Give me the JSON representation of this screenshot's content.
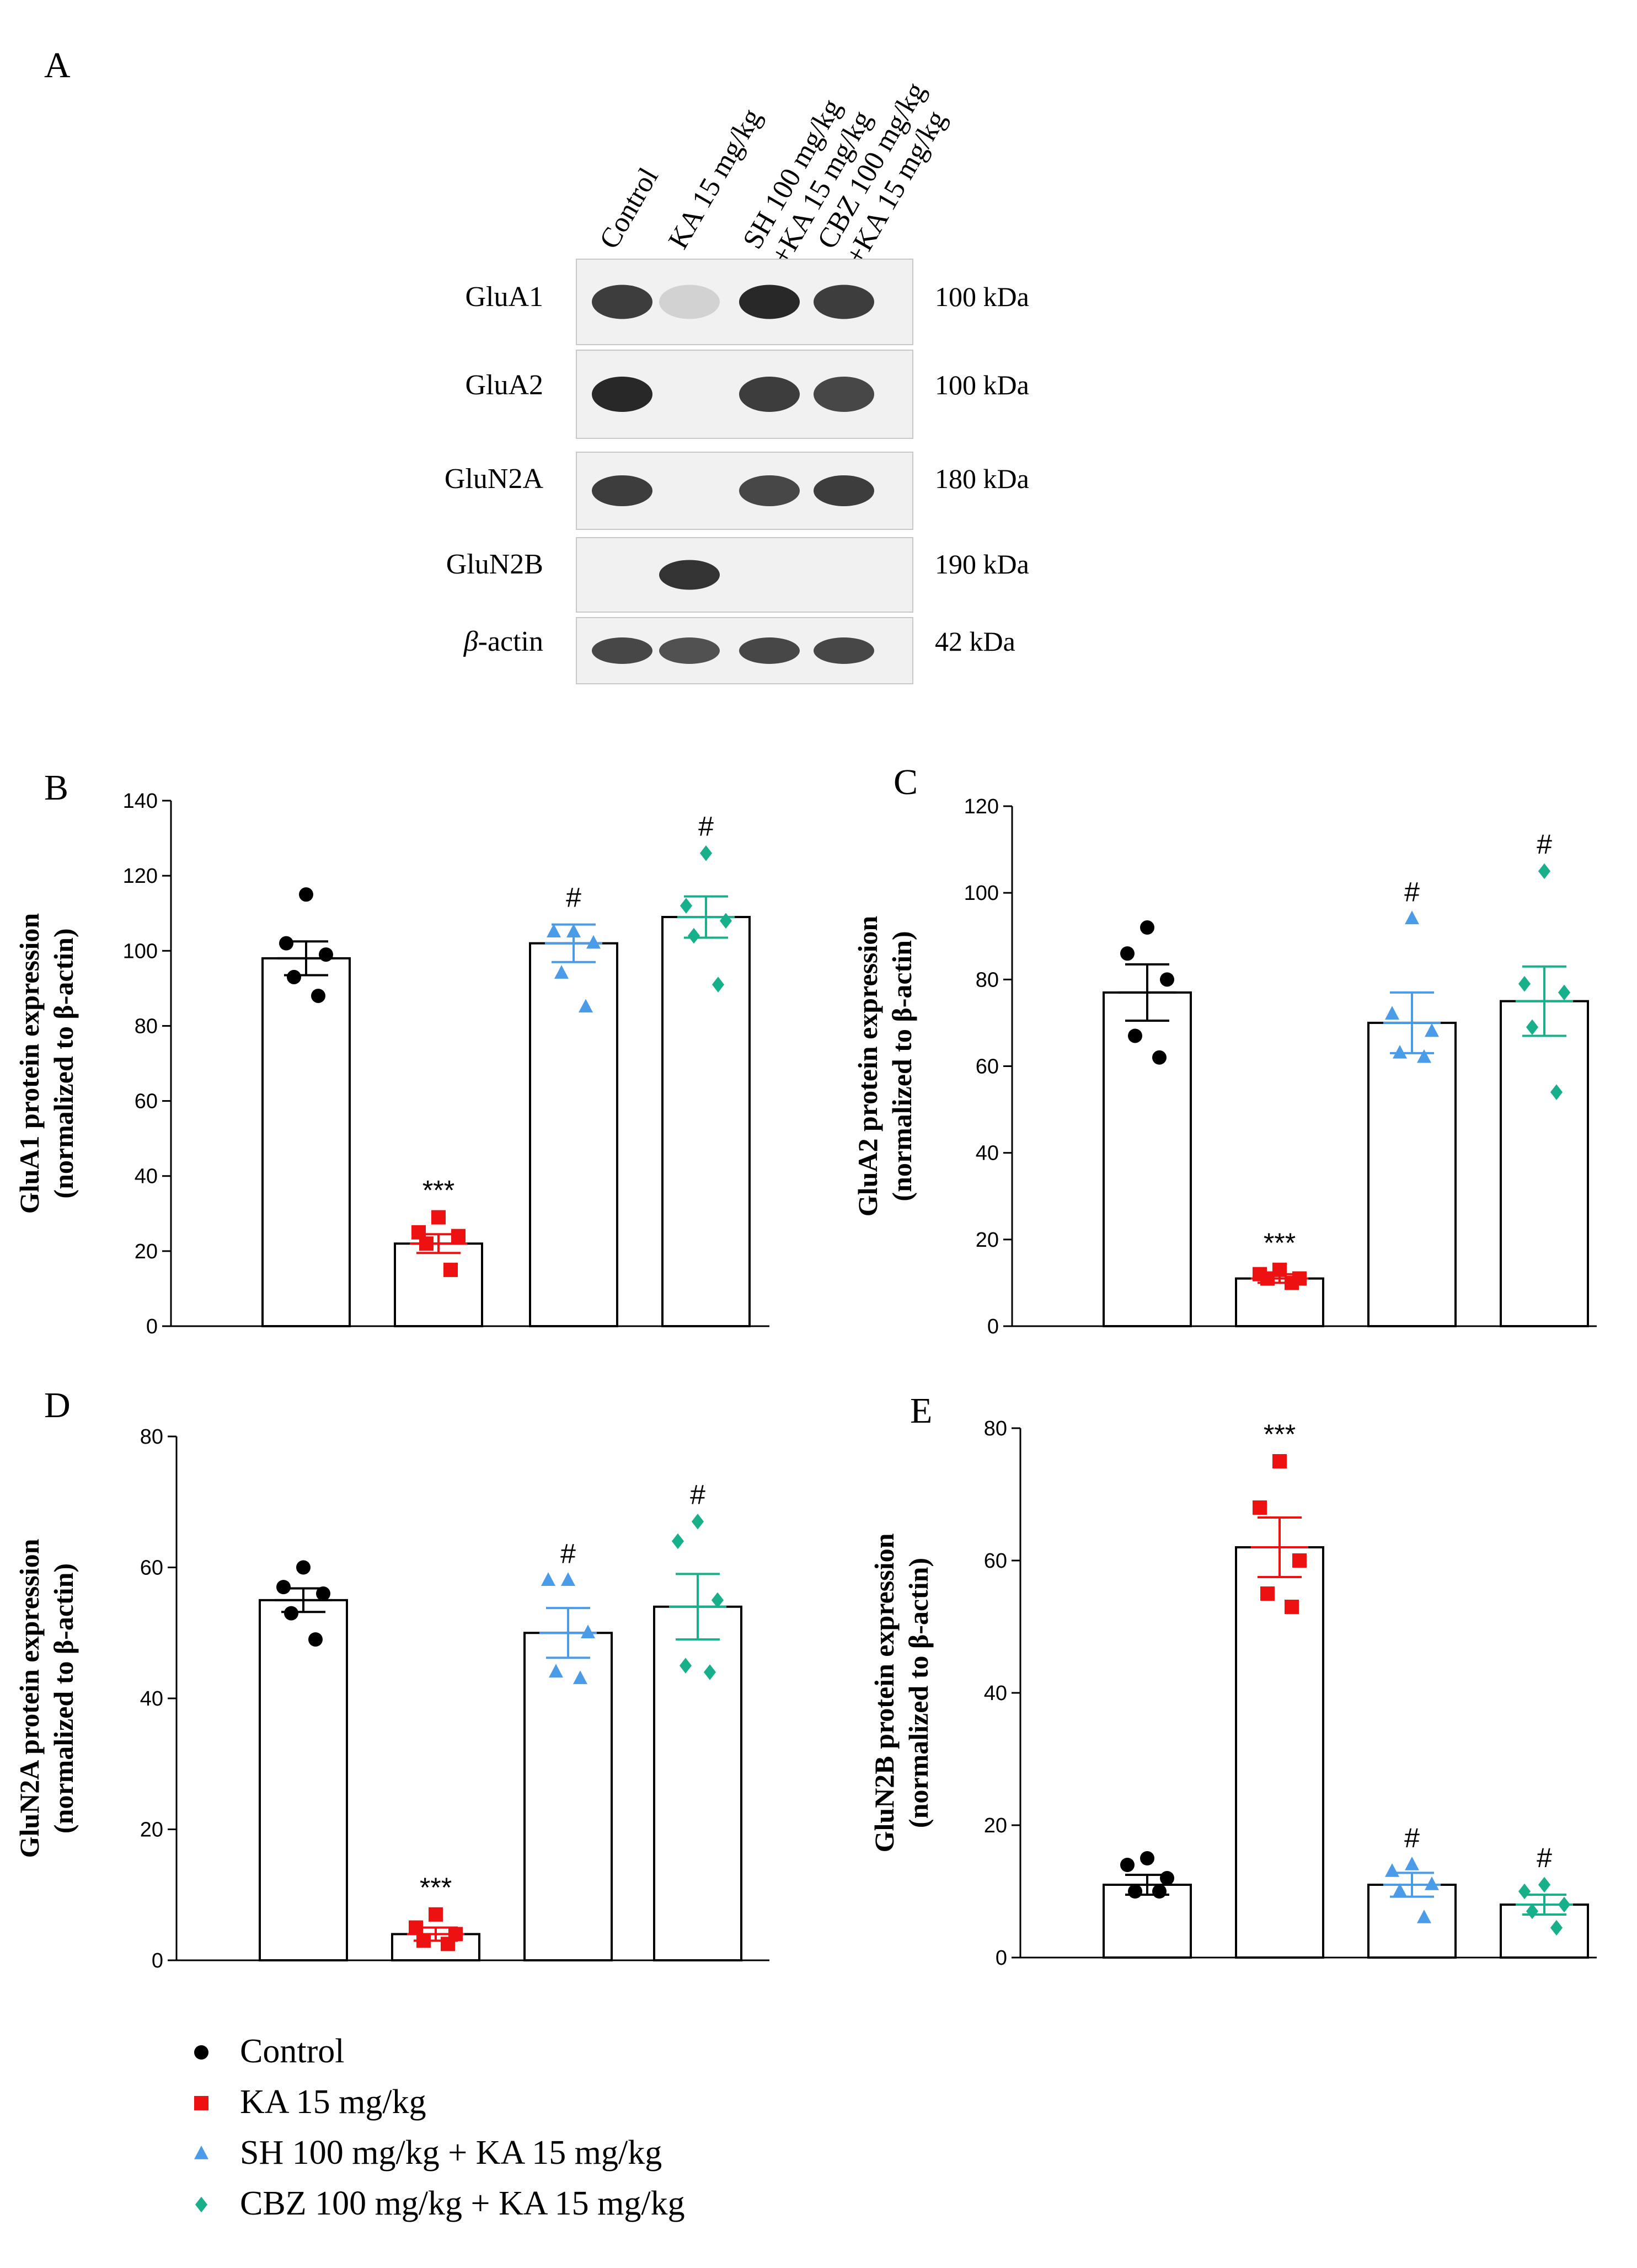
{
  "figure": {
    "groups": [
      "Control",
      "KA 15 mg/kg",
      "SH 100 mg/kg + KA 15 mg/kg",
      "CBZ 100 mg/kg + KA 15 mg/kg"
    ],
    "colors": [
      "#000000",
      "#ee1111",
      "#4a9be8",
      "#18b08a"
    ],
    "markers": [
      "circle",
      "square",
      "triangle",
      "diamond"
    ]
  },
  "blot": {
    "panel_letter": "A",
    "lane_labels": [
      [
        "Control"
      ],
      [
        "KA 15 mg/kg"
      ],
      [
        "SH 100 mg/kg",
        "+KA 15 mg/kg"
      ],
      [
        "CBZ 100 mg/kg",
        "+KA 15 mg/kg"
      ]
    ],
    "rows": [
      {
        "label": "GluA1",
        "kda": "100 kDa",
        "intensity": [
          0.85,
          0.12,
          0.95,
          0.85
        ]
      },
      {
        "label": "GluA2",
        "kda": "100 kDa",
        "intensity": [
          0.95,
          0.0,
          0.85,
          0.8
        ]
      },
      {
        "label": "GluN2A",
        "kda": "180 kDa",
        "intensity": [
          0.85,
          0.0,
          0.8,
          0.85
        ]
      },
      {
        "label": "GluN2B",
        "kda": "190 kDa",
        "intensity": [
          0.0,
          0.9,
          0.0,
          0.0
        ]
      },
      {
        "label": "-actin",
        "label_prefix": "β",
        "kda": "42 kDa",
        "intensity": [
          0.8,
          0.75,
          0.8,
          0.8
        ]
      }
    ]
  },
  "chart_data": [
    {
      "panel": "B",
      "type": "bar",
      "ylabel_lines": [
        "GluA1 protein expression",
        "(normalized to β-actin)"
      ],
      "ylim": [
        0,
        140
      ],
      "yticks": [
        0,
        20,
        40,
        60,
        80,
        100,
        120,
        140
      ],
      "means": [
        98,
        22,
        102,
        109
      ],
      "sem": [
        4.5,
        2.5,
        5,
        5.5
      ],
      "points": [
        [
          115,
          102,
          99,
          93,
          88
        ],
        [
          29,
          25,
          24,
          22,
          15
        ],
        [
          105,
          105,
          102,
          94,
          85
        ],
        [
          126,
          112,
          108,
          104,
          91
        ]
      ],
      "annotations": [
        "",
        "***",
        "#",
        "#"
      ]
    },
    {
      "panel": "C",
      "type": "bar",
      "ylabel_lines": [
        "GluA2 protein expression",
        "(normalized to β-actin)"
      ],
      "ylim": [
        0,
        120
      ],
      "yticks": [
        0,
        20,
        40,
        60,
        80,
        100,
        120
      ],
      "means": [
        77,
        11,
        70,
        75
      ],
      "sem": [
        6.5,
        1,
        7,
        8
      ],
      "points": [
        [
          92,
          86,
          80,
          67,
          62
        ],
        [
          13,
          12,
          11,
          11,
          10
        ],
        [
          94,
          72,
          68,
          63,
          62
        ],
        [
          105,
          79,
          77,
          69,
          54
        ]
      ],
      "annotations": [
        "",
        "***",
        "#",
        "#"
      ]
    },
    {
      "panel": "D",
      "type": "bar",
      "ylabel_lines": [
        "GluN2A protein expression",
        "(normalized to β-actin)"
      ],
      "ylim": [
        0,
        80
      ],
      "yticks": [
        0,
        20,
        40,
        60,
        80
      ],
      "means": [
        55,
        4,
        50,
        54
      ],
      "sem": [
        1.8,
        1,
        3.8,
        5
      ],
      "points": [
        [
          60,
          57,
          56,
          53,
          49
        ],
        [
          7,
          5,
          4,
          3,
          2.5
        ],
        [
          58,
          58,
          50,
          44,
          43
        ],
        [
          67,
          64,
          55,
          45,
          44
        ]
      ],
      "annotations": [
        "",
        "***",
        "#",
        "#"
      ]
    },
    {
      "panel": "E",
      "type": "bar",
      "ylabel_lines": [
        "GluN2B protein expression",
        "(normalized to β-actin)"
      ],
      "ylim": [
        0,
        80
      ],
      "yticks": [
        0,
        20,
        40,
        60,
        80
      ],
      "means": [
        11,
        62,
        11,
        8
      ],
      "sem": [
        1.5,
        4.5,
        1.8,
        1.5
      ],
      "points": [
        [
          15,
          14,
          12,
          10,
          10
        ],
        [
          75,
          68,
          60,
          55,
          53
        ],
        [
          14,
          13,
          11,
          10,
          6
        ],
        [
          11,
          10,
          8,
          7,
          4.5
        ]
      ],
      "annotations": [
        "",
        "***",
        "#",
        "#"
      ]
    }
  ]
}
